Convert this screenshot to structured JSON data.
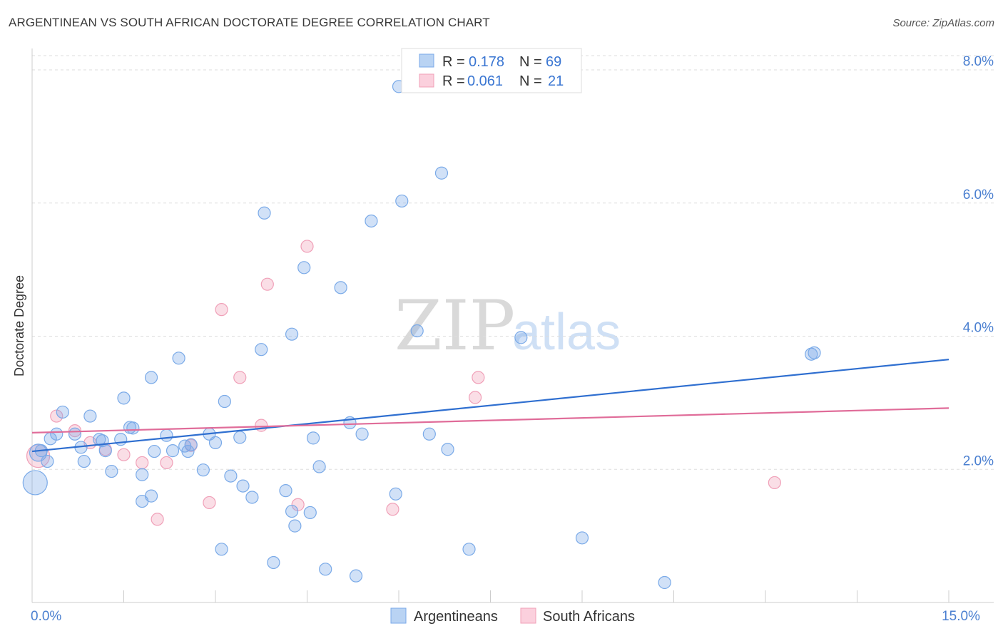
{
  "title": "ARGENTINEAN VS SOUTH AFRICAN DOCTORATE DEGREE CORRELATION CHART",
  "source": "Source: ZipAtlas.com",
  "watermark": {
    "zip": "ZIP",
    "atlas": "atlas"
  },
  "chart_data": {
    "type": "scatter",
    "xlabel": "",
    "ylabel": "Doctorate Degree",
    "xlim": [
      0,
      15
    ],
    "ylim": [
      0,
      8.3
    ],
    "x_tick_labels": [
      {
        "value": 0,
        "label": "0.0%"
      },
      {
        "value": 15,
        "label": "15.0%"
      }
    ],
    "y_ticks": [
      {
        "value": 2,
        "label": "2.0%"
      },
      {
        "value": 4,
        "label": "4.0%"
      },
      {
        "value": 6,
        "label": "6.0%"
      },
      {
        "value": 8,
        "label": "8.0%"
      }
    ],
    "colors": {
      "argentineans": "#7aaae8",
      "south_africans": "#f0a0b8",
      "arg_line": "#2f6fd0",
      "sa_line": "#e06c99"
    },
    "legend": {
      "rows": [
        {
          "r_label": "R =",
          "r_value": "0.178",
          "n_label": "N =",
          "n_value": "69"
        },
        {
          "r_label": "R =",
          "r_value": "0.061",
          "n_label": "N =",
          "n_value": "21"
        }
      ]
    },
    "series": [
      {
        "name": "Argentineans",
        "trend": {
          "x": [
            0,
            15
          ],
          "y": [
            2.27,
            3.65
          ]
        },
        "points": [
          [
            6.0,
            7.75
          ],
          [
            6.7,
            6.45
          ],
          [
            6.05,
            6.03
          ],
          [
            3.8,
            5.85
          ],
          [
            5.55,
            5.73
          ],
          [
            4.45,
            5.03
          ],
          [
            5.05,
            4.73
          ],
          [
            4.25,
            4.03
          ],
          [
            6.3,
            4.08
          ],
          [
            8.0,
            3.98
          ],
          [
            12.75,
            3.73
          ],
          [
            12.8,
            3.75
          ],
          [
            2.4,
            3.67
          ],
          [
            3.75,
            3.8
          ],
          [
            1.95,
            3.38
          ],
          [
            1.5,
            3.07
          ],
          [
            3.15,
            3.02
          ],
          [
            0.5,
            2.86
          ],
          [
            0.95,
            2.8
          ],
          [
            1.6,
            2.63
          ],
          [
            1.65,
            2.62
          ],
          [
            5.2,
            2.7
          ],
          [
            0.4,
            2.53
          ],
          [
            0.7,
            2.53
          ],
          [
            2.2,
            2.51
          ],
          [
            2.9,
            2.53
          ],
          [
            5.4,
            2.53
          ],
          [
            6.5,
            2.53
          ],
          [
            0.3,
            2.46
          ],
          [
            1.1,
            2.45
          ],
          [
            1.15,
            2.43
          ],
          [
            1.45,
            2.45
          ],
          [
            3.4,
            2.48
          ],
          [
            4.6,
            2.47
          ],
          [
            3.0,
            2.4
          ],
          [
            0.8,
            2.33
          ],
          [
            1.2,
            2.28
          ],
          [
            2.5,
            2.35
          ],
          [
            2.6,
            2.37
          ],
          [
            0.15,
            2.28
          ],
          [
            2.0,
            2.27
          ],
          [
            2.3,
            2.28
          ],
          [
            2.55,
            2.27
          ],
          [
            6.8,
            2.3
          ],
          [
            0.25,
            2.12
          ],
          [
            0.85,
            2.12
          ],
          [
            4.7,
            2.04
          ],
          [
            1.3,
            1.97
          ],
          [
            1.8,
            1.92
          ],
          [
            2.8,
            1.99
          ],
          [
            3.25,
            1.9
          ],
          [
            3.45,
            1.75
          ],
          [
            4.15,
            1.68
          ],
          [
            5.95,
            1.63
          ],
          [
            1.95,
            1.6
          ],
          [
            1.8,
            1.52
          ],
          [
            3.6,
            1.58
          ],
          [
            4.25,
            1.37
          ],
          [
            4.55,
            1.35
          ],
          [
            4.3,
            1.15
          ],
          [
            9.0,
            0.97
          ],
          [
            3.1,
            0.8
          ],
          [
            7.15,
            0.8
          ],
          [
            3.95,
            0.6
          ],
          [
            4.8,
            0.5
          ],
          [
            5.3,
            0.4
          ],
          [
            10.35,
            0.3
          ],
          [
            0.1,
            2.25
          ],
          [
            0.05,
            1.8
          ]
        ]
      },
      {
        "name": "South Africans",
        "trend": {
          "x": [
            0,
            15
          ],
          "y": [
            2.55,
            2.92
          ]
        },
        "points": [
          [
            4.5,
            5.35
          ],
          [
            3.85,
            4.78
          ],
          [
            3.1,
            4.4
          ],
          [
            3.4,
            3.38
          ],
          [
            7.3,
            3.38
          ],
          [
            7.25,
            3.08
          ],
          [
            0.4,
            2.8
          ],
          [
            3.75,
            2.66
          ],
          [
            0.7,
            2.58
          ],
          [
            0.95,
            2.4
          ],
          [
            2.6,
            2.36
          ],
          [
            1.2,
            2.3
          ],
          [
            1.5,
            2.22
          ],
          [
            1.8,
            2.1
          ],
          [
            2.2,
            2.1
          ],
          [
            12.15,
            1.8
          ],
          [
            2.9,
            1.5
          ],
          [
            4.35,
            1.47
          ],
          [
            5.9,
            1.4
          ],
          [
            2.05,
            1.25
          ],
          [
            0.1,
            2.2
          ]
        ]
      }
    ]
  },
  "bottom_legend": {
    "items": [
      {
        "label": "Argentineans"
      },
      {
        "label": "South Africans"
      }
    ]
  }
}
